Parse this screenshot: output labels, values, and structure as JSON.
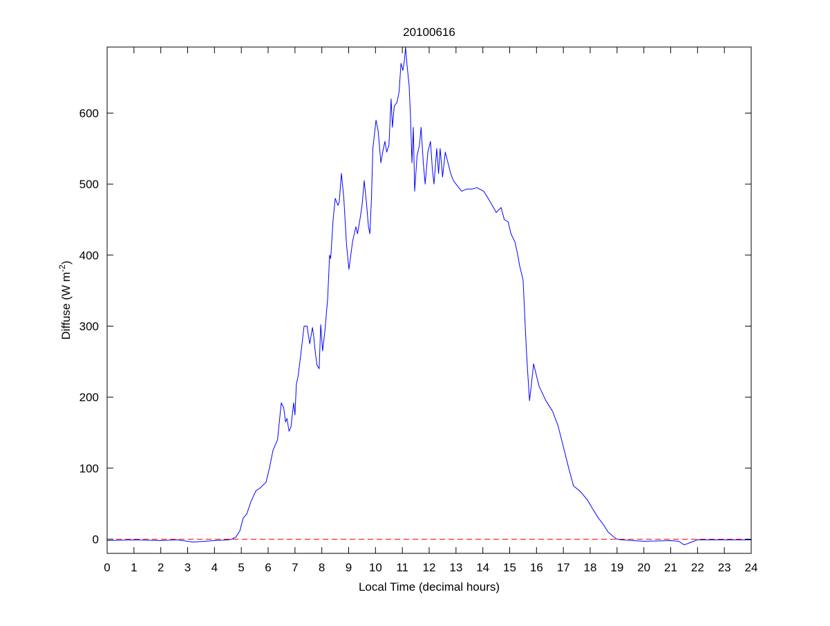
{
  "chart_data": {
    "type": "line",
    "title": "20100616",
    "xlabel": "Local Time (decimal hours)",
    "ylabel_main": "Diffuse (W m",
    "ylabel_sup": "-2",
    "ylabel_end": ")",
    "xlim": [
      0,
      24
    ],
    "ylim": [
      -20,
      693
    ],
    "xticks": [
      0,
      1,
      2,
      3,
      4,
      5,
      6,
      7,
      8,
      9,
      10,
      11,
      12,
      13,
      14,
      15,
      16,
      17,
      18,
      19,
      20,
      21,
      22,
      23,
      24
    ],
    "yticks": [
      0,
      100,
      200,
      300,
      400,
      500,
      600
    ],
    "grid": false,
    "reference_line": {
      "y": 0,
      "style": "dashed",
      "color": "#ff0000"
    },
    "series": [
      {
        "color": "#0000ff",
        "x": [
          0,
          1,
          2,
          2.6,
          3,
          3.2,
          4,
          4.5,
          4.64,
          4.8,
          4.95,
          5.07,
          5.2,
          5.35,
          5.54,
          5.7,
          5.92,
          6.05,
          6.18,
          6.35,
          6.49,
          6.58,
          6.65,
          6.7,
          6.78,
          6.85,
          6.95,
          7.0,
          7.05,
          7.12,
          7.2,
          7.34,
          7.45,
          7.55,
          7.65,
          7.7,
          7.75,
          7.82,
          7.9,
          7.96,
          8.03,
          8.12,
          8.22,
          8.29,
          8.33,
          8.42,
          8.5,
          8.6,
          8.65,
          8.73,
          8.82,
          8.92,
          9.01,
          9.08,
          9.15,
          9.27,
          9.33,
          9.42,
          9.5,
          9.58,
          9.66,
          9.74,
          9.79,
          9.85,
          9.9,
          10.02,
          10.1,
          10.2,
          10.27,
          10.35,
          10.42,
          10.5,
          10.58,
          10.63,
          10.7,
          10.8,
          10.88,
          10.95,
          11.02,
          11.08,
          11.12,
          11.18,
          11.25,
          11.3,
          11.36,
          11.41,
          11.46,
          11.55,
          11.64,
          11.7,
          11.78,
          11.85,
          11.95,
          12.05,
          12.12,
          12.18,
          12.28,
          12.35,
          12.41,
          12.5,
          12.6,
          12.7,
          12.8,
          12.9,
          13.0,
          13.21,
          13.4,
          13.6,
          13.78,
          14.03,
          14.2,
          14.35,
          14.5,
          14.68,
          14.8,
          14.94,
          15.05,
          15.2,
          15.3,
          15.37,
          15.5,
          15.58,
          15.63,
          15.68,
          15.74,
          15.8,
          15.89,
          16.0,
          16.1,
          16.35,
          16.6,
          16.8,
          17.0,
          17.2,
          17.38,
          17.64,
          17.9,
          18.1,
          18.3,
          18.5,
          18.67,
          18.85,
          19.0,
          19.2,
          20,
          21,
          21.3,
          21.5,
          21.65,
          21.85,
          22,
          23,
          24
        ],
        "y": [
          -2,
          -1,
          -2,
          -1,
          -3,
          -4,
          -2,
          -1,
          0,
          3,
          12,
          30,
          35,
          52,
          68,
          72,
          80,
          100,
          125,
          140,
          192,
          185,
          165,
          170,
          152,
          158,
          192,
          175,
          218,
          230,
          255,
          300,
          300,
          275,
          298,
          285,
          265,
          245,
          240,
          302,
          265,
          295,
          340,
          400,
          395,
          450,
          480,
          470,
          475,
          515,
          480,
          415,
          380,
          400,
          420,
          440,
          430,
          450,
          470,
          505,
          475,
          440,
          430,
          480,
          550,
          590,
          575,
          530,
          545,
          560,
          545,
          555,
          620,
          580,
          610,
          615,
          630,
          670,
          660,
          675,
          693,
          665,
          640,
          600,
          530,
          580,
          490,
          540,
          555,
          580,
          530,
          500,
          545,
          560,
          520,
          500,
          550,
          515,
          550,
          510,
          545,
          530,
          515,
          505,
          500,
          490,
          493,
          493,
          495,
          490,
          480,
          470,
          460,
          467,
          450,
          447,
          430,
          418,
          400,
          385,
          365,
          300,
          260,
          230,
          195,
          215,
          247,
          230,
          215,
          195,
          180,
          160,
          130,
          100,
          75,
          67,
          55,
          42,
          30,
          20,
          10,
          4,
          0,
          -1,
          -3,
          -2,
          -3,
          -8,
          -6,
          -3,
          -1,
          -1,
          -1
        ]
      }
    ]
  }
}
